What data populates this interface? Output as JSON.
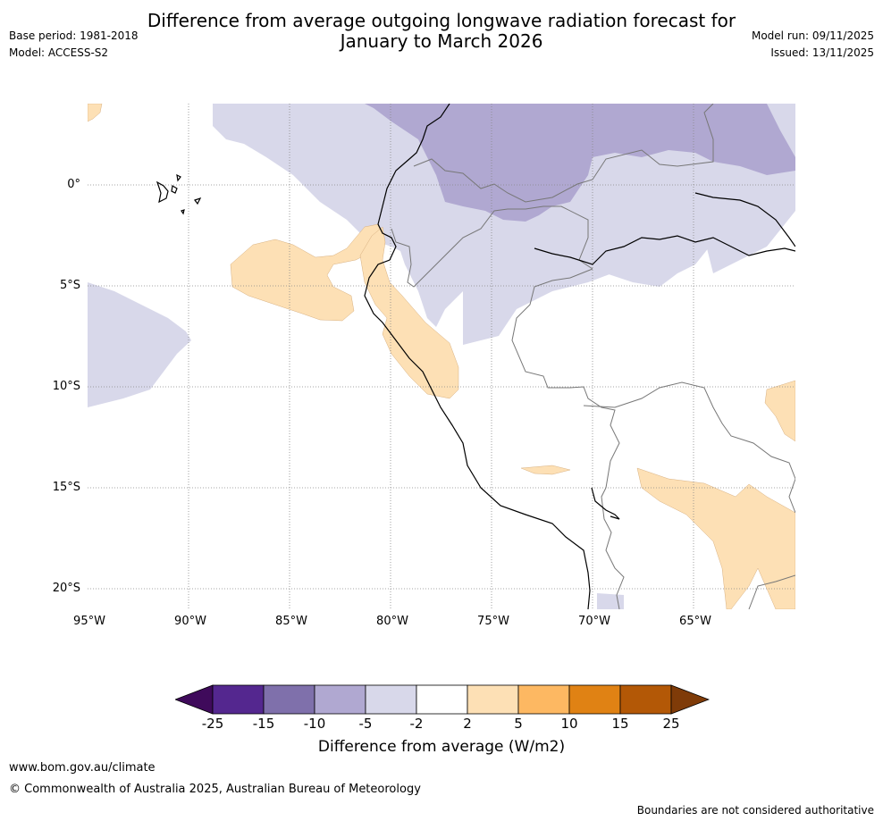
{
  "title": {
    "line1": "Difference from average outgoing longwave radiation forecast for",
    "line2": "January to March 2026"
  },
  "meta": {
    "base_period": "Base period: 1981-2018",
    "model": "Model: ACCESS-S2",
    "model_run": "Model run: 09/11/2025",
    "issued": "Issued: 13/11/2025"
  },
  "axes": {
    "lon_labels": [
      "95°W",
      "90°W",
      "85°W",
      "80°W",
      "75°W",
      "70°W",
      "65°W"
    ],
    "lat_labels": [
      "0°",
      "5°S",
      "10°S",
      "15°S",
      "20°S"
    ]
  },
  "colorbar": {
    "title": "Difference from average (W/m2)",
    "labels": [
      "-25",
      "-15",
      "-10",
      "-5",
      "-2",
      "2",
      "5",
      "10",
      "15",
      "25"
    ],
    "colors": [
      "#3f0a5b",
      "#54278f",
      "#7f70ab",
      "#b0a8d1",
      "#d8d8ea",
      "#ffffff",
      "#fde0b5",
      "#fdb862",
      "#e08214",
      "#b35806",
      "#7f3b08"
    ]
  },
  "footer": {
    "url": "www.bom.gov.au/climate",
    "copyright": "© Commonwealth of Australia 2025, Australian Bureau of Meteorology",
    "disclaimer": "Boundaries are not considered authoritative"
  }
}
